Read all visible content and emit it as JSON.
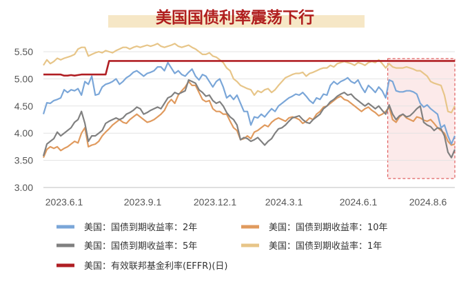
{
  "chart_data": {
    "type": "line",
    "title": "美国国债利率震荡下行",
    "xlabel": "",
    "ylabel": "",
    "ylim": [
      3.0,
      5.5
    ],
    "yticks": [
      "3.00",
      "3.50",
      "4.00",
      "4.50",
      "5.00",
      "5.50"
    ],
    "xticks": [
      "2023.6.1",
      "2023.9.1",
      "2023.12.1",
      "2024.3.1",
      "2024.6.1",
      "2024.8.6"
    ],
    "grid": "horizontal",
    "legend_position": "bottom",
    "highlight_region": {
      "from_index": 100,
      "to_index": 119
    },
    "series": [
      {
        "name": "美国：国债到期收益率：2年",
        "color": "#7aa6d8",
        "values": [
          4.35,
          4.56,
          4.55,
          4.6,
          4.62,
          4.65,
          4.8,
          4.75,
          4.8,
          4.78,
          4.82,
          4.7,
          4.95,
          4.9,
          5.05,
          4.7,
          4.72,
          4.85,
          4.9,
          4.92,
          4.95,
          5.0,
          4.9,
          4.95,
          5.02,
          5.06,
          5.12,
          5.15,
          5.1,
          5.05,
          5.1,
          5.12,
          5.15,
          5.22,
          5.22,
          5.15,
          5.3,
          5.2,
          5.1,
          5.15,
          5.08,
          5.05,
          5.12,
          5.18,
          5.05,
          4.98,
          5.08,
          5.05,
          4.95,
          4.85,
          4.95,
          5.0,
          4.85,
          4.65,
          4.7,
          4.62,
          4.7,
          4.55,
          4.4,
          4.4,
          4.15,
          4.3,
          4.28,
          4.35,
          4.3,
          4.38,
          4.45,
          4.4,
          4.5,
          4.55,
          4.6,
          4.65,
          4.68,
          4.72,
          4.7,
          4.75,
          4.68,
          4.6,
          4.55,
          4.65,
          4.62,
          4.72,
          4.7,
          4.88,
          4.95,
          4.9,
          4.95,
          4.98,
          5.02,
          4.95,
          4.92,
          4.98,
          4.85,
          4.75,
          4.88,
          4.82,
          4.75,
          4.85,
          4.78,
          4.65,
          4.98,
          4.95,
          4.78,
          4.76,
          4.76,
          4.78,
          4.78,
          4.76,
          4.72,
          4.55,
          4.48,
          4.52,
          4.45,
          4.4,
          4.35,
          4.1,
          4.15,
          3.95,
          3.8,
          3.95
        ]
      },
      {
        "name": "美国：国债到期收益率：10年",
        "color": "#e09a5e",
        "values": [
          3.55,
          3.7,
          3.75,
          3.72,
          3.75,
          3.68,
          3.72,
          3.75,
          3.8,
          3.85,
          3.82,
          4.0,
          4.1,
          3.75,
          3.78,
          3.8,
          3.85,
          3.95,
          4.02,
          4.08,
          4.15,
          4.2,
          4.25,
          4.2,
          4.18,
          4.25,
          4.3,
          4.35,
          4.3,
          4.25,
          4.2,
          4.22,
          4.25,
          4.3,
          4.35,
          4.42,
          4.55,
          4.62,
          4.55,
          4.7,
          4.78,
          4.85,
          4.95,
          4.88,
          4.88,
          4.75,
          4.62,
          4.58,
          4.6,
          4.45,
          4.4,
          4.4,
          4.35,
          4.35,
          4.22,
          4.1,
          4.05,
          3.88,
          3.9,
          3.95,
          3.9,
          4.02,
          4.05,
          4.1,
          4.15,
          4.12,
          4.2,
          4.25,
          4.28,
          4.25,
          4.22,
          4.28,
          4.3,
          4.28,
          4.25,
          4.18,
          4.22,
          4.28,
          4.25,
          4.35,
          4.4,
          4.48,
          4.5,
          4.55,
          4.6,
          4.65,
          4.68,
          4.62,
          4.6,
          4.55,
          4.5,
          4.45,
          4.4,
          4.45,
          4.48,
          4.42,
          4.38,
          4.32,
          4.35,
          4.4,
          4.48,
          4.25,
          4.2,
          4.3,
          4.35,
          4.28,
          4.25,
          4.22,
          4.3,
          4.28,
          4.24,
          4.22,
          4.25,
          4.18,
          4.1,
          4.05,
          4.0,
          3.85,
          3.78,
          3.8
        ]
      },
      {
        "name": "美国：国债到期收益率：5年",
        "color": "#808080",
        "values": [
          3.58,
          3.8,
          3.85,
          3.9,
          4.02,
          3.95,
          4.0,
          4.05,
          4.1,
          4.2,
          4.25,
          4.4,
          4.18,
          3.85,
          3.95,
          3.95,
          4.0,
          4.05,
          4.18,
          4.22,
          4.25,
          4.28,
          4.25,
          4.28,
          4.35,
          4.38,
          4.42,
          4.48,
          4.45,
          4.35,
          4.38,
          4.42,
          4.45,
          4.48,
          4.45,
          4.55,
          4.65,
          4.68,
          4.75,
          4.72,
          4.75,
          4.78,
          4.98,
          4.95,
          4.92,
          4.8,
          4.75,
          4.68,
          4.7,
          4.6,
          4.55,
          4.58,
          4.5,
          4.38,
          4.3,
          4.25,
          4.15,
          3.88,
          3.92,
          3.9,
          3.85,
          3.88,
          3.92,
          3.85,
          3.78,
          3.85,
          3.9,
          4.0,
          4.08,
          4.1,
          4.15,
          4.22,
          4.28,
          4.3,
          4.32,
          4.25,
          4.2,
          4.18,
          4.25,
          4.3,
          4.35,
          4.45,
          4.5,
          4.58,
          4.62,
          4.68,
          4.72,
          4.75,
          4.7,
          4.72,
          4.65,
          4.6,
          4.55,
          4.5,
          4.55,
          4.5,
          4.45,
          4.5,
          4.42,
          4.35,
          4.52,
          4.35,
          4.25,
          4.32,
          4.35,
          4.3,
          4.32,
          4.38,
          4.45,
          4.5,
          4.2,
          4.15,
          4.12,
          4.05,
          4.1,
          4.08,
          3.95,
          3.65,
          3.55,
          3.7
        ]
      },
      {
        "name": "美国：国债到期收益率：1年",
        "color": "#e7c588",
        "values": [
          5.25,
          5.35,
          5.28,
          5.32,
          5.38,
          5.35,
          5.38,
          5.4,
          5.42,
          5.45,
          5.55,
          5.58,
          5.58,
          5.42,
          5.45,
          5.48,
          5.5,
          5.48,
          5.52,
          5.5,
          5.48,
          5.52,
          5.55,
          5.58,
          5.58,
          5.55,
          5.58,
          5.6,
          5.58,
          5.6,
          5.62,
          5.6,
          5.62,
          5.65,
          5.6,
          5.58,
          5.6,
          5.62,
          5.65,
          5.6,
          5.58,
          5.6,
          5.62,
          5.58,
          5.55,
          5.5,
          5.45,
          5.45,
          5.48,
          5.42,
          5.4,
          5.35,
          5.3,
          5.2,
          5.15,
          5.0,
          4.95,
          4.88,
          4.85,
          4.82,
          4.8,
          4.7,
          4.78,
          4.75,
          4.8,
          4.82,
          4.75,
          4.8,
          4.88,
          4.95,
          5.02,
          5.05,
          5.08,
          5.1,
          5.1,
          5.12,
          5.05,
          5.1,
          5.12,
          5.15,
          5.18,
          5.2,
          5.2,
          5.25,
          5.22,
          5.28,
          5.3,
          5.32,
          5.3,
          5.28,
          5.25,
          5.3,
          5.28,
          5.25,
          5.3,
          5.32,
          5.3,
          5.35,
          5.28,
          5.2,
          5.28,
          5.22,
          5.2,
          5.2,
          5.2,
          5.22,
          5.2,
          5.18,
          5.15,
          5.15,
          5.1,
          5.05,
          4.95,
          4.92,
          4.9,
          4.88,
          4.7,
          4.4,
          4.38,
          4.5
        ]
      },
      {
        "name": "美国：有效联邦基金利率(EFFR)(日)",
        "color": "#b01e23",
        "values": [
          5.08,
          5.08,
          5.08,
          5.08,
          5.08,
          5.08,
          5.06,
          5.06,
          5.07,
          5.06,
          5.07,
          5.08,
          5.08,
          5.08,
          5.08,
          5.08,
          5.08,
          5.08,
          5.08,
          5.33,
          5.33,
          5.33,
          5.33,
          5.33,
          5.33,
          5.33,
          5.33,
          5.33,
          5.33,
          5.33,
          5.33,
          5.33,
          5.33,
          5.33,
          5.33,
          5.33,
          5.33,
          5.33,
          5.33,
          5.33,
          5.33,
          5.33,
          5.33,
          5.33,
          5.33,
          5.33,
          5.33,
          5.33,
          5.33,
          5.33,
          5.33,
          5.33,
          5.33,
          5.33,
          5.33,
          5.33,
          5.33,
          5.33,
          5.33,
          5.33,
          5.33,
          5.33,
          5.33,
          5.33,
          5.33,
          5.33,
          5.33,
          5.33,
          5.33,
          5.33,
          5.33,
          5.33,
          5.33,
          5.33,
          5.33,
          5.33,
          5.33,
          5.33,
          5.33,
          5.33,
          5.33,
          5.33,
          5.33,
          5.33,
          5.33,
          5.33,
          5.33,
          5.33,
          5.33,
          5.33,
          5.33,
          5.33,
          5.33,
          5.33,
          5.33,
          5.33,
          5.33,
          5.33,
          5.33,
          5.33,
          5.33,
          5.33,
          5.33,
          5.33,
          5.33,
          5.33,
          5.33,
          5.33,
          5.33,
          5.33,
          5.33,
          5.33,
          5.33,
          5.33,
          5.33,
          5.33,
          5.33,
          5.33,
          5.33,
          5.33
        ]
      }
    ]
  }
}
